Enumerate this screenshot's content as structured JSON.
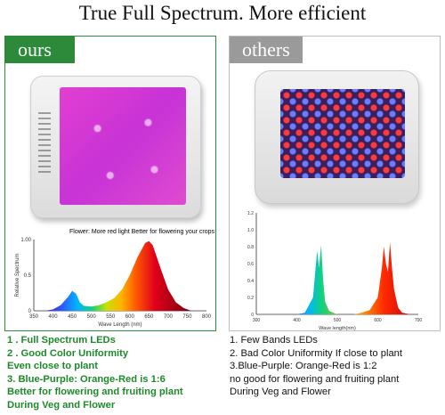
{
  "headline": "True Full Spectrum. More efficient",
  "left_panel": {
    "tab_label": "ours",
    "chart_title": "Flower: More red light Better for flowering your crops",
    "ylabel": "Relative Spectrum",
    "xlabel": "Wave Length (nm)",
    "features": [
      "1 . Full Spectrum LEDs",
      "2 . Good Color Uniformity",
      "Even close to plant",
      "3. Blue-Purple: Orange-Red is 1:6",
      "Better for flowering and fruiting plant",
      "During Veg and Flower"
    ],
    "text_color": "#1d8a2a",
    "tab_color": "#2c8a3a"
  },
  "right_panel": {
    "tab_label": "others",
    "xlabel": "Wave length(nm)",
    "features": [
      "1. Few Bands LEDs",
      "2. Bad Color Uniformity If close to plant",
      "3.Blue-Purple: Orange-Red is 1:2",
      "no good for flowering and fruiting plant",
      "During Veg and Flower"
    ],
    "tab_color": "#9a9a9a"
  },
  "chart_data": [
    {
      "type": "area",
      "title": "Flower: More red light Better for flowering your crops",
      "xlabel": "Wave Length (nm)",
      "ylabel": "Relative Spectrum",
      "x_ticks": [
        "350",
        "400",
        "450",
        "500",
        "550",
        "600",
        "650",
        "700",
        "750",
        "800"
      ],
      "y_ticks": [
        "0",
        "0.5",
        "1.00"
      ],
      "xlim": [
        350,
        800
      ],
      "ylim": [
        0,
        1.0
      ],
      "x": [
        380,
        400,
        420,
        440,
        450,
        460,
        470,
        480,
        500,
        520,
        540,
        560,
        580,
        600,
        620,
        640,
        650,
        660,
        680,
        700,
        720,
        740,
        760
      ],
      "y": [
        0.0,
        0.02,
        0.08,
        0.2,
        0.28,
        0.24,
        0.12,
        0.07,
        0.06,
        0.08,
        0.12,
        0.18,
        0.3,
        0.5,
        0.75,
        0.95,
        0.98,
        0.92,
        0.6,
        0.3,
        0.12,
        0.04,
        0.0
      ]
    },
    {
      "type": "area",
      "xlabel": "Wave length(nm)",
      "x_ticks": [
        "300",
        "400",
        "500",
        "600",
        "700"
      ],
      "y_ticks": [
        "0",
        "0.2",
        "0.4",
        "0.6",
        "0.8",
        "1.0",
        "1.2"
      ],
      "xlim": [
        300,
        700
      ],
      "ylim": [
        0,
        1.2
      ],
      "x": [
        360,
        380,
        400,
        420,
        440,
        450,
        455,
        460,
        465,
        470,
        480,
        500,
        540,
        560,
        580,
        600,
        610,
        615,
        620,
        625,
        630,
        635,
        640,
        650,
        660,
        680,
        700
      ],
      "y": [
        0.0,
        0.0,
        0.0,
        0.02,
        0.2,
        0.75,
        0.55,
        0.82,
        0.4,
        0.15,
        0.04,
        0.0,
        0.0,
        0.02,
        0.05,
        0.2,
        0.55,
        0.8,
        0.6,
        0.5,
        0.85,
        0.55,
        0.3,
        0.08,
        0.02,
        0.0,
        0.0
      ]
    }
  ]
}
